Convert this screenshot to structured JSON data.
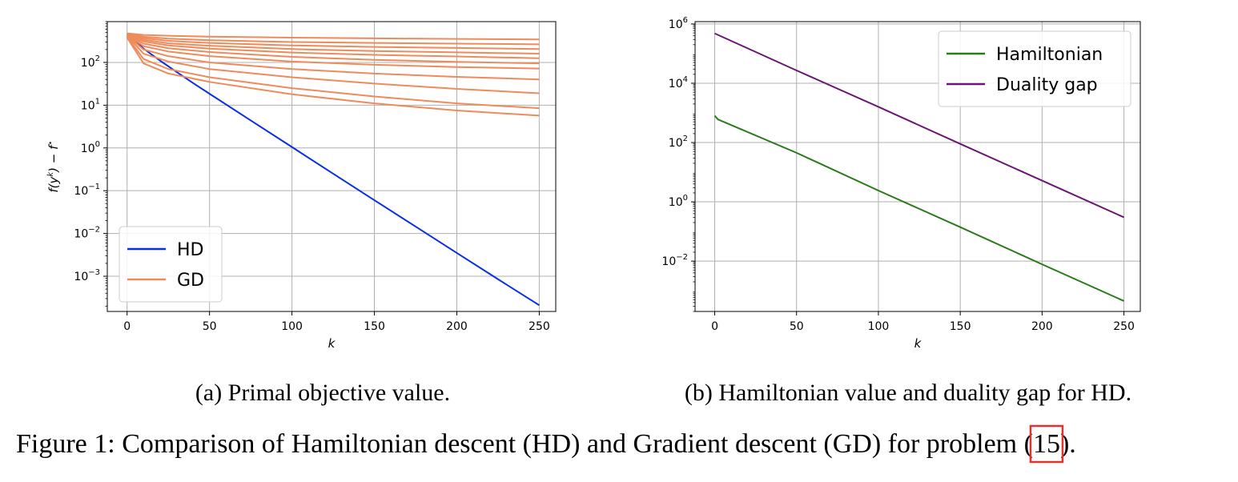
{
  "chart_data": [
    {
      "type": "line",
      "title": "",
      "xlabel": "k",
      "ylabel": "f(y^k) − f*",
      "ylabel_parts": {
        "f": "f(y",
        "sup1": "k",
        "mid": ") − f",
        "sup2": "⋆"
      },
      "yscale": "log",
      "xlim": [
        -12,
        260
      ],
      "ylim": [
        0.00015,
        900
      ],
      "xticks": [
        0,
        50,
        100,
        150,
        200,
        250
      ],
      "yticks": [
        {
          "value": 0.001,
          "base": "10",
          "exp": "−3"
        },
        {
          "value": 0.01,
          "base": "10",
          "exp": "−2"
        },
        {
          "value": 0.1,
          "base": "10",
          "exp": "−1"
        },
        {
          "value": 1,
          "base": "10",
          "exp": "0"
        },
        {
          "value": 10,
          "base": "10",
          "exp": "1"
        },
        {
          "value": 100,
          "base": "10",
          "exp": "2"
        }
      ],
      "grid": true,
      "legend_position": "lower-left",
      "series": [
        {
          "name": "HD",
          "color": "#0a2de6",
          "x": [
            0,
            10,
            20,
            30,
            40,
            50,
            75,
            100,
            125,
            150,
            175,
            200,
            225,
            250
          ],
          "y": [
            480,
            210,
            110,
            60,
            33,
            18.5,
            4.4,
            1.05,
            0.25,
            0.06,
            0.0145,
            0.0035,
            0.00085,
            0.00021
          ]
        },
        {
          "name": "GD",
          "color": "#ef8a5a",
          "x": [
            0,
            10,
            25,
            50,
            100,
            150,
            200,
            250
          ],
          "y": [
            480,
            440,
            420,
            400,
            380,
            365,
            355,
            345
          ]
        },
        {
          "name": "",
          "color": "#ef8a5a",
          "x": [
            0,
            10,
            25,
            50,
            100,
            150,
            200,
            250
          ],
          "y": [
            470,
            400,
            360,
            330,
            300,
            285,
            275,
            265
          ]
        },
        {
          "name": "",
          "color": "#ef8a5a",
          "x": [
            0,
            10,
            25,
            50,
            100,
            150,
            200,
            250
          ],
          "y": [
            465,
            370,
            320,
            285,
            250,
            230,
            218,
            205
          ]
        },
        {
          "name": "",
          "color": "#ef8a5a",
          "x": [
            0,
            10,
            25,
            50,
            100,
            150,
            200,
            250
          ],
          "y": [
            460,
            340,
            280,
            245,
            205,
            185,
            172,
            160
          ]
        },
        {
          "name": "",
          "color": "#ef8a5a",
          "x": [
            0,
            10,
            25,
            50,
            100,
            150,
            200,
            250
          ],
          "y": [
            455,
            310,
            250,
            210,
            170,
            150,
            138,
            125
          ]
        },
        {
          "name": "",
          "color": "#ef8a5a",
          "x": [
            0,
            10,
            25,
            50,
            100,
            150,
            200,
            250
          ],
          "y": [
            450,
            275,
            215,
            175,
            135,
            115,
            103,
            95
          ]
        },
        {
          "name": "",
          "color": "#ef8a5a",
          "x": [
            0,
            10,
            25,
            50,
            100,
            150,
            200,
            250
          ],
          "y": [
            440,
            240,
            180,
            140,
            105,
            88,
            78,
            72
          ]
        },
        {
          "name": "",
          "color": "#ef8a5a",
          "x": [
            0,
            10,
            25,
            50,
            100,
            150,
            200,
            250
          ],
          "y": [
            430,
            200,
            140,
            100,
            70,
            55,
            46,
            40
          ]
        },
        {
          "name": "",
          "color": "#ef8a5a",
          "x": [
            0,
            10,
            25,
            50,
            100,
            150,
            200,
            250
          ],
          "y": [
            420,
            160,
            105,
            70,
            45,
            32,
            24,
            19
          ]
        },
        {
          "name": "",
          "color": "#ef8a5a",
          "x": [
            0,
            10,
            25,
            50,
            100,
            150,
            200,
            250
          ],
          "y": [
            400,
            120,
            70,
            45,
            25,
            16,
            11,
            8.5
          ]
        },
        {
          "name": "",
          "color": "#ef8a5a",
          "x": [
            0,
            10,
            25,
            50,
            100,
            150,
            200,
            250
          ],
          "y": [
            380,
            95,
            55,
            35,
            18,
            11,
            7.5,
            5.7
          ]
        }
      ]
    },
    {
      "type": "line",
      "title": "",
      "xlabel": "k",
      "ylabel": "",
      "yscale": "log",
      "xlim": [
        -12,
        260
      ],
      "ylim": [
        0.0002,
        1200000
      ],
      "xticks": [
        0,
        50,
        100,
        150,
        200,
        250
      ],
      "yticks": [
        {
          "value": 0.01,
          "base": "10",
          "exp": "−2"
        },
        {
          "value": 1,
          "base": "10",
          "exp": "0"
        },
        {
          "value": 100,
          "base": "10",
          "exp": "2"
        },
        {
          "value": 10000,
          "base": "10",
          "exp": "4"
        },
        {
          "value": 1000000,
          "base": "10",
          "exp": "6"
        }
      ],
      "grid": true,
      "legend_position": "upper-right",
      "series": [
        {
          "name": "Hamiltonian",
          "color": "#2a7a1c",
          "x": [
            0,
            2,
            50,
            100,
            150,
            200,
            250
          ],
          "y": [
            800,
            600,
            45,
            2.4,
            0.14,
            0.0078,
            0.00045
          ]
        },
        {
          "name": "Duality gap",
          "color": "#6b1672",
          "x": [
            0,
            50,
            100,
            150,
            200,
            250
          ],
          "y": [
            480000,
            27000,
            1600,
            90,
            5.2,
            0.3
          ]
        }
      ]
    }
  ],
  "captions": {
    "a": "(a) Primal objective value.",
    "b": "(b) Hamiltonian value and duality gap for HD.",
    "main_before": "Figure 1: Comparison of Hamiltonian descent (HD) and Gradient descent (GD) for problem (",
    "main_ref": "15",
    "main_after": ")."
  },
  "colors": {
    "ref_box": "#e3322b",
    "grid": "#b0b0b0"
  }
}
